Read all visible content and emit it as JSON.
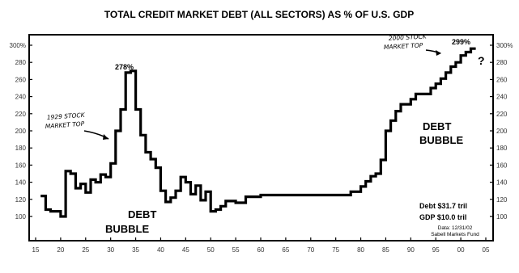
{
  "chart_data": {
    "type": "line",
    "title": "TOTAL CREDIT MARKET DEBT (ALL SECTORS) AS % OF U.S. GDP",
    "xlabel": "",
    "ylabel": "",
    "x_ticks": [
      "15",
      "20",
      "25",
      "30",
      "35",
      "40",
      "45",
      "50",
      "55",
      "60",
      "65",
      "70",
      "75",
      "80",
      "85",
      "90",
      "95",
      "00",
      "05"
    ],
    "y_ticks_left": [
      "300%",
      "280",
      "260",
      "240",
      "220",
      "200",
      "180",
      "160",
      "140",
      "120",
      "100"
    ],
    "y_ticks_right": [
      "300%",
      "280",
      "260",
      "240",
      "220",
      "200",
      "180",
      "160",
      "140",
      "120",
      "100"
    ],
    "ylim": [
      100,
      300
    ],
    "xlim": [
      1915,
      2005
    ],
    "grid": false,
    "series": [
      {
        "x": [
          1916,
          1917,
          1917,
          1918,
          1918,
          1920,
          1920,
          1921,
          1921,
          1922,
          1922,
          1923,
          1923,
          1924,
          1924,
          1925,
          1925,
          1926,
          1926,
          1927,
          1927,
          1928,
          1928,
          1929,
          1929,
          1930,
          1930,
          1931,
          1931,
          1932,
          1932,
          1933,
          1933,
          1934,
          1934,
          1935,
          1935,
          1936,
          1936,
          1937,
          1937,
          1938,
          1938,
          1939,
          1939,
          1940,
          1940,
          1941,
          1941,
          1942,
          1942,
          1943,
          1943,
          1944,
          1944,
          1945,
          1945,
          1946,
          1946,
          1947,
          1947,
          1948,
          1948,
          1949,
          1949,
          1950,
          1950,
          1951,
          1951,
          1952,
          1952,
          1953,
          1953,
          1955,
          1955,
          1957,
          1957,
          1960,
          1960,
          1978,
          1978,
          1980,
          1980,
          1981,
          1981,
          1982,
          1982,
          1983,
          1983,
          1984,
          1984,
          1985,
          1985,
          1986,
          1986,
          1987,
          1987,
          1988,
          1988,
          1990,
          1990,
          1991,
          1991,
          1994,
          1994,
          1995,
          1995,
          1996,
          1996,
          1997,
          1997,
          1998,
          1998,
          1999,
          1999,
          2000,
          2000,
          2001,
          2001,
          2002,
          2002,
          2003
        ],
        "y": [
          124,
          124,
          108,
          108,
          106,
          106,
          100,
          100,
          153,
          153,
          150,
          150,
          133,
          133,
          138,
          138,
          128,
          128,
          143,
          143,
          140,
          140,
          149,
          149,
          146,
          146,
          162,
          162,
          200,
          200,
          225,
          225,
          268,
          268,
          270,
          270,
          225,
          225,
          195,
          195,
          175,
          175,
          167,
          167,
          157,
          157,
          130,
          130,
          117,
          117,
          122,
          122,
          130,
          130,
          146,
          146,
          140,
          140,
          126,
          126,
          136,
          136,
          119,
          119,
          129,
          129,
          106,
          106,
          108,
          108,
          112,
          112,
          118,
          118,
          116,
          116,
          123,
          123,
          125,
          125,
          129,
          129,
          135,
          135,
          141,
          141,
          147,
          147,
          150,
          150,
          166,
          166,
          200,
          200,
          212,
          212,
          223,
          223,
          231,
          231,
          237,
          237,
          243,
          243,
          250,
          250,
          255,
          255,
          261,
          261,
          268,
          268,
          275,
          275,
          280,
          280,
          288,
          288,
          292,
          292,
          296,
          296
        ]
      }
    ],
    "annotations": {
      "peak_1933": "278%",
      "crash_1929": "1929 STOCK MARKET TOP",
      "crash_2000": "2000 STOCK MARKET TOP",
      "peak_2002": "299%",
      "question": "?",
      "bubble_left_1": "DEBT",
      "bubble_left_2": "BUBBLE",
      "bubble_right_1": "DEBT",
      "bubble_right_2": "BUBBLE",
      "debt_line": "Debt $31.7 tril",
      "gdp_line": "GDP $10.0 tril",
      "source_1": "Data: 12/31/02",
      "source_2": "Sabell Markets Fund"
    }
  }
}
